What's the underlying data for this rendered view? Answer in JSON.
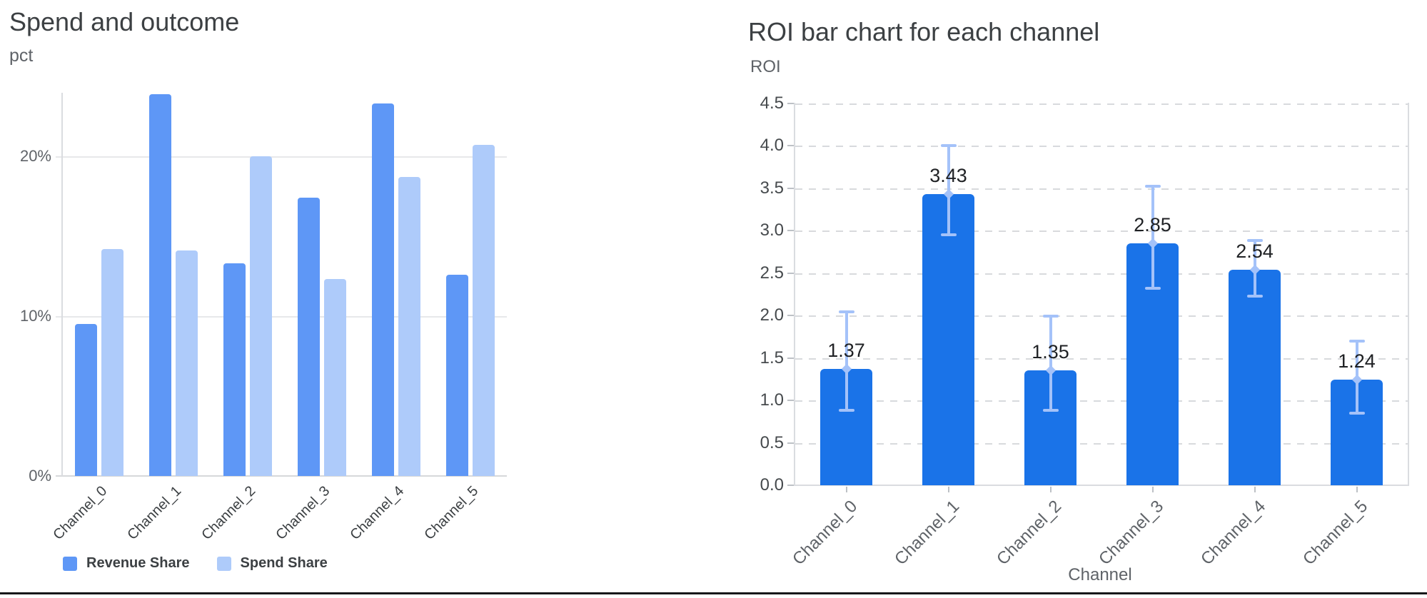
{
  "dashboard": {
    "background": "#ffffff",
    "bottom_rule_color": "#17181a"
  },
  "chart_data": [
    {
      "type": "bar",
      "title": "Spend and outcome",
      "ylabel": "pct",
      "xlabel": "",
      "categories": [
        "Channel_0",
        "Channel_1",
        "Channel_2",
        "Channel_3",
        "Channel_4",
        "Channel_5"
      ],
      "series": [
        {
          "name": "Revenue Share",
          "color": "#5e97f6",
          "values": [
            9.5,
            23.9,
            13.3,
            17.4,
            23.3,
            12.6
          ]
        },
        {
          "name": "Spend Share",
          "color": "#aecbfa",
          "values": [
            14.2,
            14.1,
            20.0,
            12.3,
            18.7,
            20.7
          ]
        }
      ],
      "y_ticks": [
        "0%",
        "10%",
        "20%"
      ],
      "ylim": [
        0,
        24.4
      ],
      "grid": "horizontal-solid",
      "legend_position": "bottom-left",
      "value_unit": "percent"
    },
    {
      "type": "bar",
      "title": "ROI bar chart for each channel",
      "ylabel": "ROI",
      "xlabel": "Channel",
      "categories": [
        "Channel_0",
        "Channel_1",
        "Channel_2",
        "Channel_3",
        "Channel_4",
        "Channel_5"
      ],
      "values": [
        1.37,
        3.43,
        1.35,
        2.85,
        2.54,
        1.24
      ],
      "bar_labels": [
        "1.37",
        "3.43",
        "1.35",
        "2.85",
        "2.54",
        "1.24"
      ],
      "error_high": [
        2.04,
        4.0,
        1.99,
        3.52,
        2.88,
        1.7
      ],
      "error_low": [
        0.88,
        2.95,
        0.88,
        2.32,
        2.23,
        0.85
      ],
      "bar_color": "#1a73e8",
      "error_bar_color": "#a4c2f9",
      "y_ticks": [
        "0.0",
        "0.5",
        "1.0",
        "1.5",
        "2.0",
        "2.5",
        "3.0",
        "3.5",
        "4.0",
        "4.5"
      ],
      "ylim": [
        0,
        4.5
      ],
      "grid": "horizontal-dashed",
      "legend_position": "none"
    }
  ]
}
